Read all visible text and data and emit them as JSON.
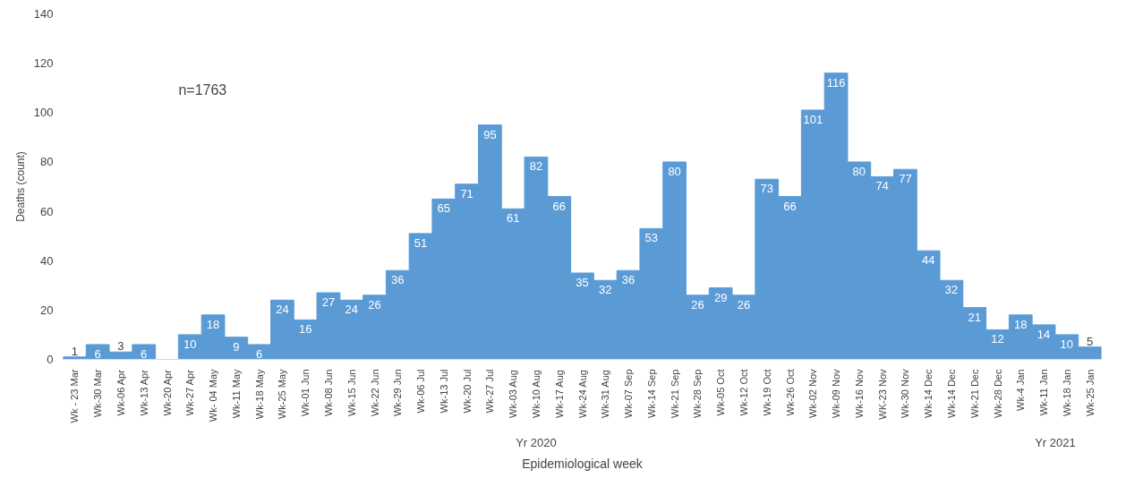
{
  "chart_data": {
    "type": "bar",
    "xlabel": "Epidemiological week",
    "ylabel": "Deaths (count)",
    "categories": [
      "Wk - 23 Mar",
      "Wk-30 Mar",
      "Wk-06 Apr",
      "Wk-13 Apr",
      "Wk-20 Apr",
      "Wk-27 Apr",
      "Wk- 04 May",
      "Wk-11 May",
      "Wk-18 May",
      "Wk-25 May",
      "Wk-01 Jun",
      "Wk-08 Jun",
      "Wk-15 Jun",
      "Wk-22 Jun",
      "Wk-29 Jun",
      "Wk-06 Jul",
      "Wk-13 Jul",
      "Wk-20 Jul",
      "Wk-27 Jul",
      "Wk-03 Aug",
      "Wk-10 Aug",
      "Wk-17 Aug",
      "Wk-24 Aug",
      "Wk-31 Aug",
      "Wk-07 Sep",
      "Wk-14 Sep",
      "Wk-21 Sep",
      "Wk-28 Sep",
      "Wk-05 Oct",
      "Wk-12 Oct",
      "Wk-19 Oct",
      "Wk-26 Oct",
      "Wk-02 Nov",
      "Wk-09 Nov",
      "Wk-16 Nov",
      "WK-23 Nov",
      "Wk-30 Nov",
      "Wk-14 Dec",
      "Wk-14 Dec",
      "Wk-21 Dec",
      "Wk-28 Dec",
      "Wk-4 Jan",
      "Wk-11 Jan",
      "Wk-18 Jan",
      "Wk-25 Jan"
    ],
    "values": [
      1,
      6,
      3,
      6,
      0,
      10,
      18,
      9,
      6,
      24,
      16,
      27,
      24,
      26,
      36,
      51,
      65,
      71,
      95,
      61,
      82,
      66,
      35,
      32,
      36,
      53,
      80,
      26,
      29,
      26,
      73,
      66,
      101,
      116,
      80,
      74,
      77,
      44,
      32,
      21,
      12,
      18,
      14,
      10,
      5
    ],
    "value_labels": [
      "1",
      "6",
      "3",
      "6",
      null,
      "10",
      "18",
      "9",
      "6",
      "24",
      "16",
      "27",
      "24",
      "26",
      "36",
      "51",
      "65",
      "71",
      "95",
      "61",
      "82",
      "66",
      "35",
      "32",
      "36",
      "53",
      "80",
      "26",
      "29",
      "26",
      "73",
      "66",
      "101",
      "116",
      "80",
      "74",
      "77",
      "44",
      "32",
      "21",
      "12",
      "18",
      "14",
      "10",
      "5"
    ],
    "color": "#5b9bd5",
    "ylim": [
      0,
      140
    ],
    "yticks": [
      0,
      20,
      40,
      60,
      80,
      100,
      120,
      140
    ],
    "grid": false,
    "annotations": [
      "n=1763",
      "Yr 2020",
      "Yr 2021"
    ]
  }
}
